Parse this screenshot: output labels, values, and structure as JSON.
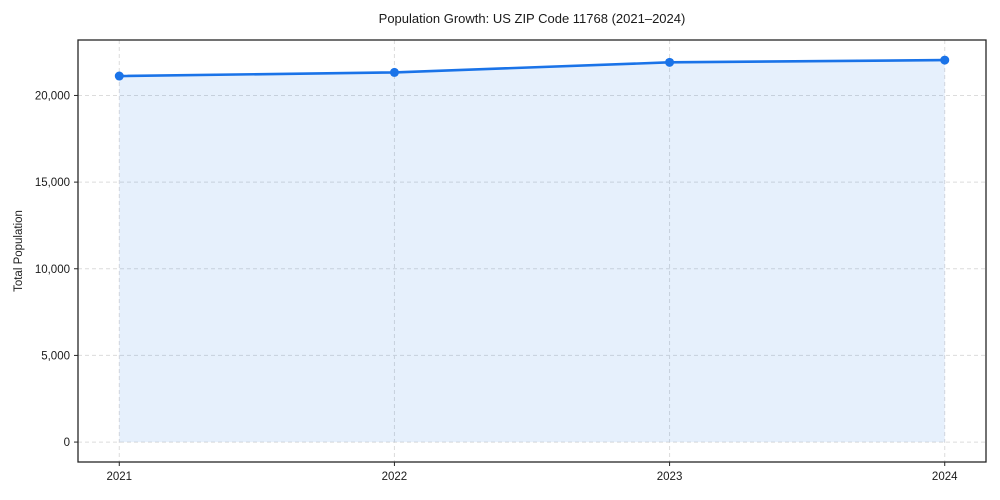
{
  "chart_data": {
    "type": "line",
    "title": "Population Growth: US ZIP Code 11768 (2021–2024)",
    "xlabel": "",
    "ylabel": "Total Population",
    "x": [
      2021,
      2022,
      2023,
      2024
    ],
    "x_tick_labels": [
      "2021",
      "2022",
      "2023",
      "2024"
    ],
    "values": [
      21120,
      21330,
      21910,
      22040
    ],
    "y_ticks": [
      0,
      5000,
      10000,
      15000,
      20000
    ],
    "y_tick_labels": [
      "0",
      "5,000",
      "10,000",
      "15,000",
      "20,000"
    ],
    "xlim": [
      2020.85,
      2024.15
    ],
    "ylim": [
      -1150,
      23200
    ],
    "grid": true,
    "grid_style": "dashed",
    "area_fill": true,
    "marker": "circle",
    "legend": "none",
    "colors": {
      "line": "#1a73e8",
      "marker": "#1a73e8",
      "fill": "#1a73e8",
      "fill_opacity": 0.11,
      "grid": "#dcdcdc",
      "frame": "#262626",
      "tick_text": "#1a1a1a",
      "background": "#ffffff"
    }
  }
}
